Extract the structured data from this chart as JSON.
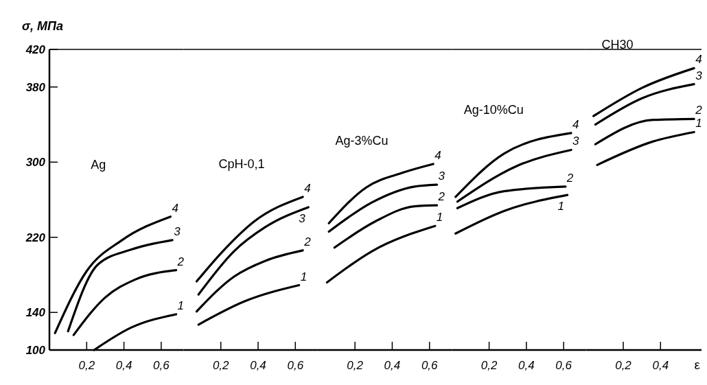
{
  "chart_data": [
    {
      "type": "line",
      "title": "Ag",
      "ylabel": "σ, МПа",
      "xlim": [
        0,
        0.72
      ],
      "xticks": [
        {
          "value": 0.2,
          "label": "0,2"
        },
        {
          "value": 0.4,
          "label": "0,4"
        },
        {
          "value": 0.6,
          "label": "0,6"
        }
      ],
      "ylim": [
        100,
        420
      ],
      "yticks": [
        100,
        140,
        220,
        300,
        380,
        420
      ],
      "series": [
        {
          "name": "1",
          "color": "#000000",
          "x": [
            0.24,
            0.44,
            0.68
          ],
          "values": [
            100,
            124,
            138
          ]
        },
        {
          "name": "2",
          "color": "#000000",
          "x": [
            0.13,
            0.3,
            0.46,
            0.68
          ],
          "values": [
            116,
            156,
            175,
            185
          ]
        },
        {
          "name": "3",
          "color": "#000000",
          "x": [
            0.1,
            0.26,
            0.44,
            0.66
          ],
          "values": [
            120,
            191,
            207,
            217
          ]
        },
        {
          "name": "4",
          "color": "#000000",
          "x": [
            0.03,
            0.2,
            0.39,
            0.65
          ],
          "values": [
            118,
            184,
            217,
            242
          ]
        }
      ]
    },
    {
      "type": "line",
      "title": "СрН-0,1",
      "xlim": [
        0,
        0.72
      ],
      "xticks": [
        {
          "value": 0.2,
          "label": "0,2"
        },
        {
          "value": 0.4,
          "label": "0,4"
        },
        {
          "value": 0.6,
          "label": "0,6"
        }
      ],
      "ylim": [
        100,
        420
      ],
      "tick_labels": "x",
      "series": [
        {
          "name": "1",
          "color": "#000000",
          "x": [
            0.08,
            0.33,
            0.62
          ],
          "values": [
            127,
            152,
            169
          ]
        },
        {
          "name": "2",
          "color": "#000000",
          "x": [
            0.07,
            0.27,
            0.44,
            0.64
          ],
          "values": [
            141,
            178,
            195,
            206
          ]
        },
        {
          "name": "3",
          "color": "#000000",
          "x": [
            0.08,
            0.27,
            0.44,
            0.67
          ],
          "values": [
            159,
            205,
            231,
            252
          ]
        },
        {
          "name": "4",
          "color": "#000000",
          "x": [
            0.07,
            0.21,
            0.38,
            0.64
          ],
          "values": [
            173,
            205,
            237,
            263
          ]
        }
      ]
    },
    {
      "type": "line",
      "title": "Ag-3%Cu",
      "xlim": [
        0,
        0.72
      ],
      "xticks": [
        {
          "value": 0.2,
          "label": "0,2"
        },
        {
          "value": 0.4,
          "label": "0,4"
        },
        {
          "value": 0.6,
          "label": "0,6"
        }
      ],
      "ylim": [
        100,
        420
      ],
      "tick_labels": "x",
      "series": [
        {
          "name": "1",
          "color": "#000000",
          "x": [
            0.05,
            0.29,
            0.63
          ],
          "values": [
            172,
            205,
            232
          ]
        },
        {
          "name": "2",
          "color": "#000000",
          "x": [
            0.09,
            0.31,
            0.52,
            0.64
          ],
          "values": [
            209,
            237,
            253,
            254
          ]
        },
        {
          "name": "3",
          "color": "#000000",
          "x": [
            0.06,
            0.29,
            0.52,
            0.64
          ],
          "values": [
            226,
            257,
            274,
            276
          ]
        },
        {
          "name": "4",
          "color": "#000000",
          "x": [
            0.06,
            0.26,
            0.46,
            0.62
          ],
          "values": [
            235,
            273,
            289,
            298
          ]
        }
      ]
    },
    {
      "type": "line",
      "title": "Ag-10%Cu",
      "xlim": [
        0,
        0.72
      ],
      "xticks": [
        {
          "value": 0.2,
          "label": "0,2"
        },
        {
          "value": 0.4,
          "label": "0,4"
        },
        {
          "value": 0.6,
          "label": "0,6"
        }
      ],
      "ylim": [
        100,
        420
      ],
      "tick_labels": "x",
      "series": [
        {
          "name": "1",
          "color": "#000000",
          "x": [
            0.02,
            0.28,
            0.62
          ],
          "values": [
            224,
            248,
            265
          ]
        },
        {
          "name": "2",
          "color": "#000000",
          "x": [
            0.03,
            0.28,
            0.61
          ],
          "values": [
            251,
            269,
            274
          ]
        },
        {
          "name": "3",
          "color": "#000000",
          "x": [
            0.03,
            0.35,
            0.64
          ],
          "values": [
            258,
            296,
            313
          ]
        },
        {
          "name": "4",
          "color": "#000000",
          "x": [
            0.02,
            0.28,
            0.64
          ],
          "values": [
            263,
            309,
            331
          ]
        }
      ]
    },
    {
      "type": "line",
      "title": "СН30",
      "xlabel": "ε",
      "xlim": [
        0,
        0.62
      ],
      "xticks": [
        {
          "value": 0.2,
          "label": "0,2"
        },
        {
          "value": 0.4,
          "label": "0,4"
        }
      ],
      "ylim": [
        100,
        420
      ],
      "tick_labels": "x",
      "series": [
        {
          "name": "1",
          "color": "#000000",
          "x": [
            0.06,
            0.36,
            0.58
          ],
          "values": [
            297,
            322,
            332
          ]
        },
        {
          "name": "2",
          "color": "#000000",
          "x": [
            0.05,
            0.36,
            0.58
          ],
          "values": [
            319,
            345,
            346
          ]
        },
        {
          "name": "3",
          "color": "#000000",
          "x": [
            0.05,
            0.3,
            0.58
          ],
          "values": [
            340,
            368,
            383
          ]
        },
        {
          "name": "4",
          "color": "#000000",
          "x": [
            0.04,
            0.3,
            0.58
          ],
          "values": [
            349,
            379,
            400
          ]
        }
      ]
    }
  ]
}
